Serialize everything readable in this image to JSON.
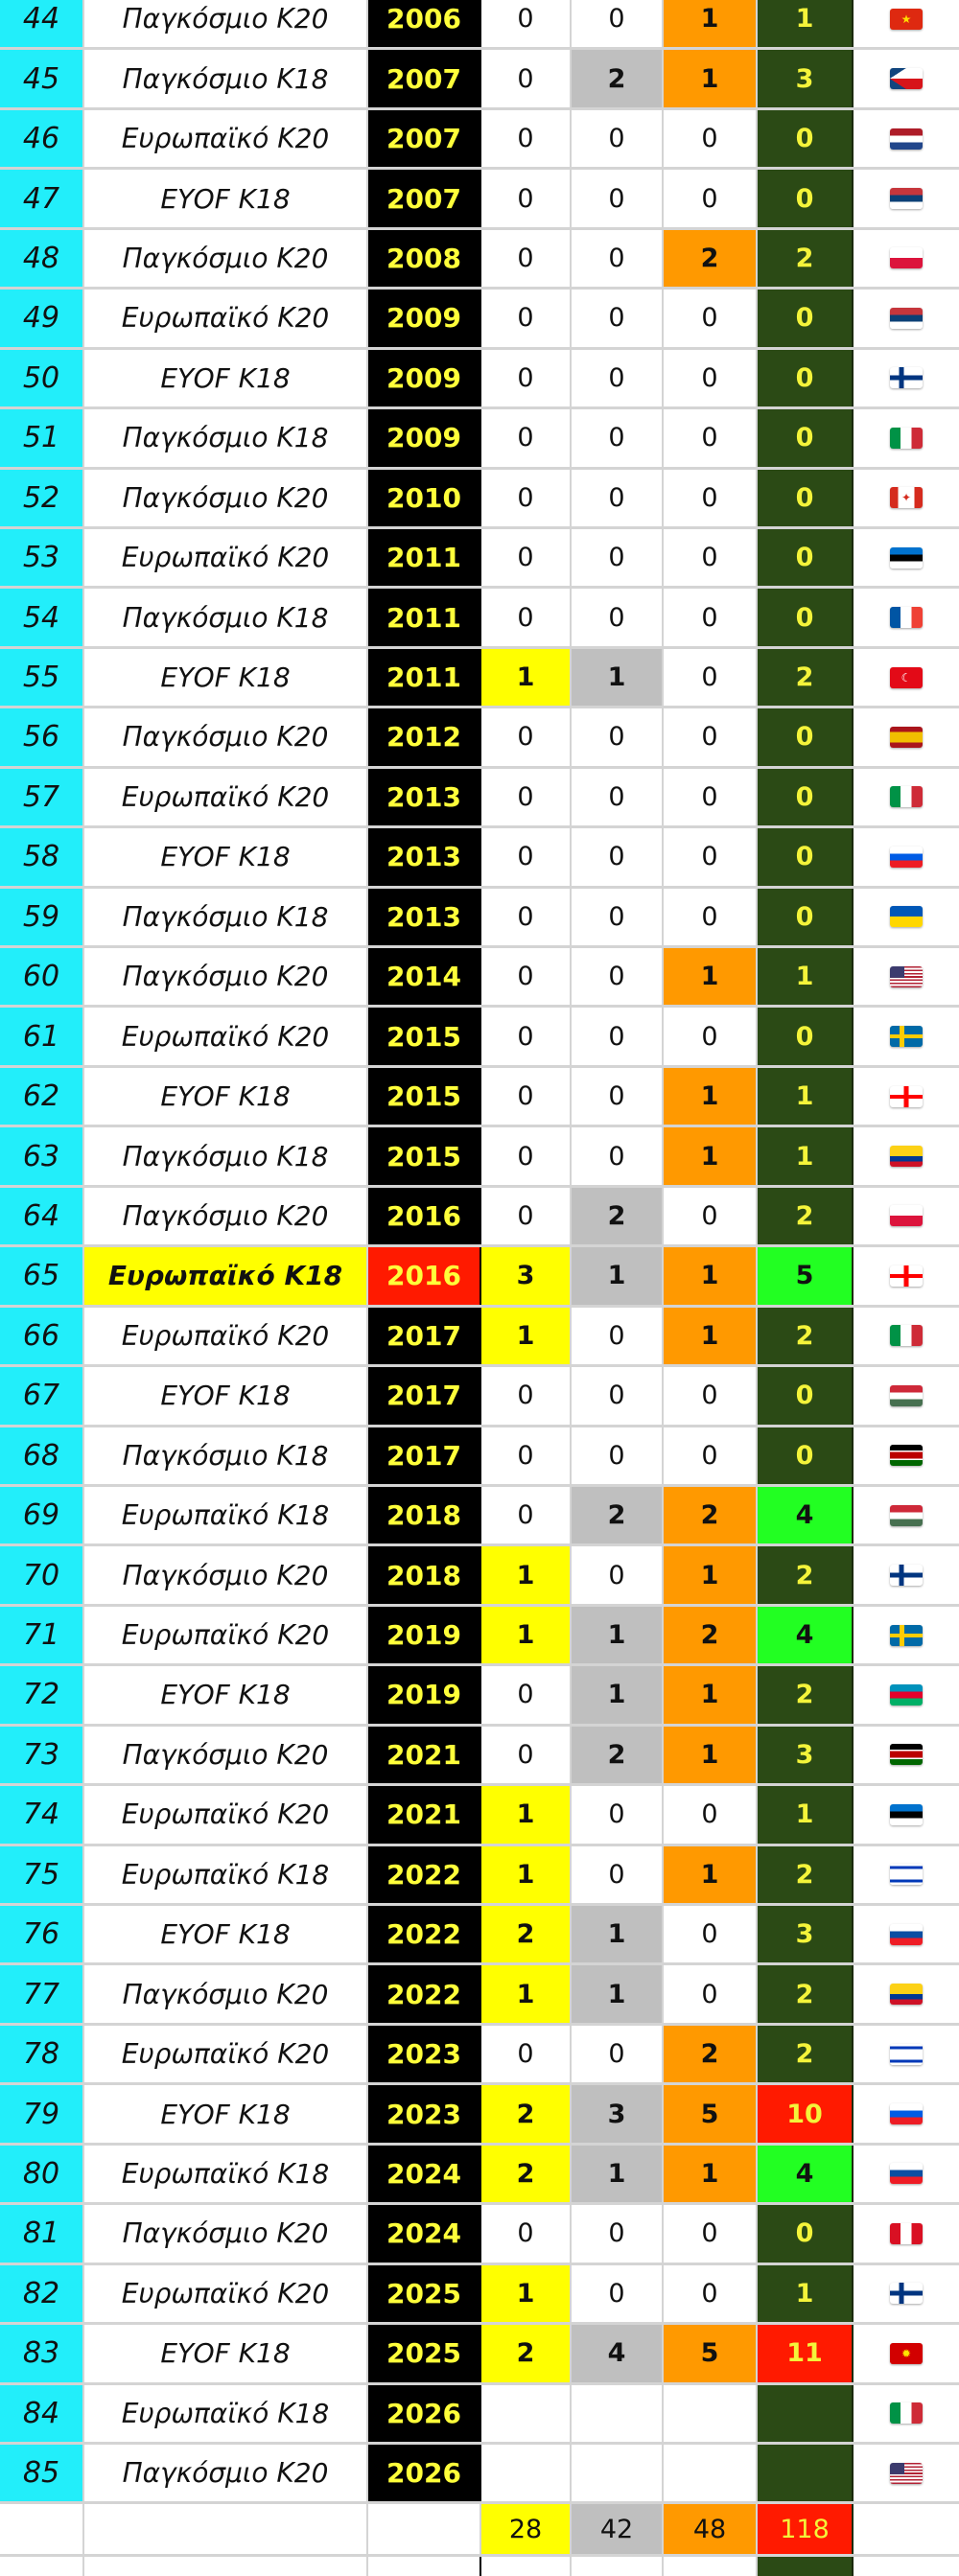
{
  "colors": {
    "number_col": "#22eefa",
    "year_col": "#000000",
    "year_text": "#ffff3a",
    "gold": "#ffff00",
    "silver": "#bfbfbf",
    "bronze": "#ff9900",
    "total_default": "#2b4a15",
    "total_highlight_green": "#22ff22",
    "total_highlight_red": "#ff1a00",
    "highlight_event": "#ffff00",
    "highlight_year": "#ff1a00"
  },
  "rows": [
    {
      "num": "44",
      "event": "Παγκόσμιο Κ20",
      "year": "2006",
      "gold": "0",
      "silver": "0",
      "bronze": "1",
      "total": "1",
      "flag": "CN"
    },
    {
      "num": "45",
      "event": "Παγκόσμιο Κ18",
      "year": "2007",
      "gold": "0",
      "silver": "2",
      "bronze": "1",
      "total": "3",
      "flag": "CZ"
    },
    {
      "num": "46",
      "event": "Ευρωπαϊκό Κ20",
      "year": "2007",
      "gold": "0",
      "silver": "0",
      "bronze": "0",
      "total": "0",
      "flag": "NL"
    },
    {
      "num": "47",
      "event": "EYOF K18",
      "year": "2007",
      "gold": "0",
      "silver": "0",
      "bronze": "0",
      "total": "0",
      "flag": "RS"
    },
    {
      "num": "48",
      "event": "Παγκόσμιο Κ20",
      "year": "2008",
      "gold": "0",
      "silver": "0",
      "bronze": "2",
      "total": "2",
      "flag": "PL"
    },
    {
      "num": "49",
      "event": "Ευρωπαϊκό Κ20",
      "year": "2009",
      "gold": "0",
      "silver": "0",
      "bronze": "0",
      "total": "0",
      "flag": "RS"
    },
    {
      "num": "50",
      "event": "EYOF K18",
      "year": "2009",
      "gold": "0",
      "silver": "0",
      "bronze": "0",
      "total": "0",
      "flag": "FI"
    },
    {
      "num": "51",
      "event": "Παγκόσμιο Κ18",
      "year": "2009",
      "gold": "0",
      "silver": "0",
      "bronze": "0",
      "total": "0",
      "flag": "IT"
    },
    {
      "num": "52",
      "event": "Παγκόσμιο Κ20",
      "year": "2010",
      "gold": "0",
      "silver": "0",
      "bronze": "0",
      "total": "0",
      "flag": "CA"
    },
    {
      "num": "53",
      "event": "Ευρωπαϊκό Κ20",
      "year": "2011",
      "gold": "0",
      "silver": "0",
      "bronze": "0",
      "total": "0",
      "flag": "EE"
    },
    {
      "num": "54",
      "event": "Παγκόσμιο Κ18",
      "year": "2011",
      "gold": "0",
      "silver": "0",
      "bronze": "0",
      "total": "0",
      "flag": "FR"
    },
    {
      "num": "55",
      "event": "EYOF K18",
      "year": "2011",
      "gold": "1",
      "silver": "1",
      "bronze": "0",
      "total": "2",
      "flag": "TR"
    },
    {
      "num": "56",
      "event": "Παγκόσμιο Κ20",
      "year": "2012",
      "gold": "0",
      "silver": "0",
      "bronze": "0",
      "total": "0",
      "flag": "ES"
    },
    {
      "num": "57",
      "event": "Ευρωπαϊκό Κ20",
      "year": "2013",
      "gold": "0",
      "silver": "0",
      "bronze": "0",
      "total": "0",
      "flag": "IT"
    },
    {
      "num": "58",
      "event": "EYOF K18",
      "year": "2013",
      "gold": "0",
      "silver": "0",
      "bronze": "0",
      "total": "0",
      "flag": "SI"
    },
    {
      "num": "59",
      "event": "Παγκόσμιο Κ18",
      "year": "2013",
      "gold": "0",
      "silver": "0",
      "bronze": "0",
      "total": "0",
      "flag": "UA"
    },
    {
      "num": "60",
      "event": "Παγκόσμιο Κ20",
      "year": "2014",
      "gold": "0",
      "silver": "0",
      "bronze": "1",
      "total": "1",
      "flag": "US"
    },
    {
      "num": "61",
      "event": "Ευρωπαϊκό Κ20",
      "year": "2015",
      "gold": "0",
      "silver": "0",
      "bronze": "0",
      "total": "0",
      "flag": "SE"
    },
    {
      "num": "62",
      "event": "EYOF K18",
      "year": "2015",
      "gold": "0",
      "silver": "0",
      "bronze": "1",
      "total": "1",
      "flag": "GE"
    },
    {
      "num": "63",
      "event": "Παγκόσμιο Κ18",
      "year": "2015",
      "gold": "0",
      "silver": "0",
      "bronze": "1",
      "total": "1",
      "flag": "CO"
    },
    {
      "num": "64",
      "event": "Παγκόσμιο Κ20",
      "year": "2016",
      "gold": "0",
      "silver": "2",
      "bronze": "0",
      "total": "2",
      "flag": "PL"
    },
    {
      "num": "65",
      "event": "Ευρωπαϊκό Κ18",
      "year": "2016",
      "gold": "3",
      "silver": "1",
      "bronze": "1",
      "total": "5",
      "flag": "GE",
      "highlight": true
    },
    {
      "num": "66",
      "event": "Ευρωπαϊκό Κ20",
      "year": "2017",
      "gold": "1",
      "silver": "0",
      "bronze": "1",
      "total": "2",
      "flag": "IT"
    },
    {
      "num": "67",
      "event": "EYOF K18",
      "year": "2017",
      "gold": "0",
      "silver": "0",
      "bronze": "0",
      "total": "0",
      "flag": "HU"
    },
    {
      "num": "68",
      "event": "Παγκόσμιο Κ18",
      "year": "2017",
      "gold": "0",
      "silver": "0",
      "bronze": "0",
      "total": "0",
      "flag": "KE"
    },
    {
      "num": "69",
      "event": "Ευρωπαϊκό Κ18",
      "year": "2018",
      "gold": "0",
      "silver": "2",
      "bronze": "2",
      "total": "4",
      "flag": "HU"
    },
    {
      "num": "70",
      "event": "Παγκόσμιο Κ20",
      "year": "2018",
      "gold": "1",
      "silver": "0",
      "bronze": "1",
      "total": "2",
      "flag": "FI"
    },
    {
      "num": "71",
      "event": "Ευρωπαϊκό Κ20",
      "year": "2019",
      "gold": "1",
      "silver": "1",
      "bronze": "2",
      "total": "4",
      "flag": "SE"
    },
    {
      "num": "72",
      "event": "EYOF K18",
      "year": "2019",
      "gold": "0",
      "silver": "1",
      "bronze": "1",
      "total": "2",
      "flag": "AZ"
    },
    {
      "num": "73",
      "event": "Παγκόσμιο Κ20",
      "year": "2021",
      "gold": "0",
      "silver": "2",
      "bronze": "1",
      "total": "3",
      "flag": "KE"
    },
    {
      "num": "74",
      "event": "Ευρωπαϊκό Κ20",
      "year": "2021",
      "gold": "1",
      "silver": "0",
      "bronze": "0",
      "total": "1",
      "flag": "EE"
    },
    {
      "num": "75",
      "event": "Ευρωπαϊκό Κ18",
      "year": "2022",
      "gold": "1",
      "silver": "0",
      "bronze": "1",
      "total": "2",
      "flag": "IL"
    },
    {
      "num": "76",
      "event": "EYOF K18",
      "year": "2022",
      "gold": "2",
      "silver": "1",
      "bronze": "0",
      "total": "3",
      "flag": "SK"
    },
    {
      "num": "77",
      "event": "Παγκόσμιο Κ20",
      "year": "2022",
      "gold": "1",
      "silver": "1",
      "bronze": "0",
      "total": "2",
      "flag": "CO"
    },
    {
      "num": "78",
      "event": "Ευρωπαϊκό Κ20",
      "year": "2023",
      "gold": "0",
      "silver": "0",
      "bronze": "2",
      "total": "2",
      "flag": "IL"
    },
    {
      "num": "79",
      "event": "EYOF K18",
      "year": "2023",
      "gold": "2",
      "silver": "3",
      "bronze": "5",
      "total": "10",
      "flag": "SI"
    },
    {
      "num": "80",
      "event": "Ευρωπαϊκό Κ18",
      "year": "2024",
      "gold": "2",
      "silver": "1",
      "bronze": "1",
      "total": "4",
      "flag": "SK"
    },
    {
      "num": "81",
      "event": "Παγκόσμιο Κ20",
      "year": "2024",
      "gold": "0",
      "silver": "0",
      "bronze": "0",
      "total": "0",
      "flag": "PE"
    },
    {
      "num": "82",
      "event": "Ευρωπαϊκό Κ20",
      "year": "2025",
      "gold": "1",
      "silver": "0",
      "bronze": "0",
      "total": "1",
      "flag": "FI"
    },
    {
      "num": "83",
      "event": "EYOF K18",
      "year": "2025",
      "gold": "2",
      "silver": "4",
      "bronze": "5",
      "total": "11",
      "flag": "MK"
    },
    {
      "num": "84",
      "event": "Ευρωπαϊκό Κ18",
      "year": "2026",
      "gold": "",
      "silver": "",
      "bronze": "",
      "total": "",
      "flag": "IT"
    },
    {
      "num": "85",
      "event": "Παγκόσμιο Κ20",
      "year": "2026",
      "gold": "",
      "silver": "",
      "bronze": "",
      "total": "",
      "flag": "US"
    }
  ],
  "totals": {
    "gold": "28",
    "silver": "42",
    "bronze": "48",
    "total": "118"
  }
}
